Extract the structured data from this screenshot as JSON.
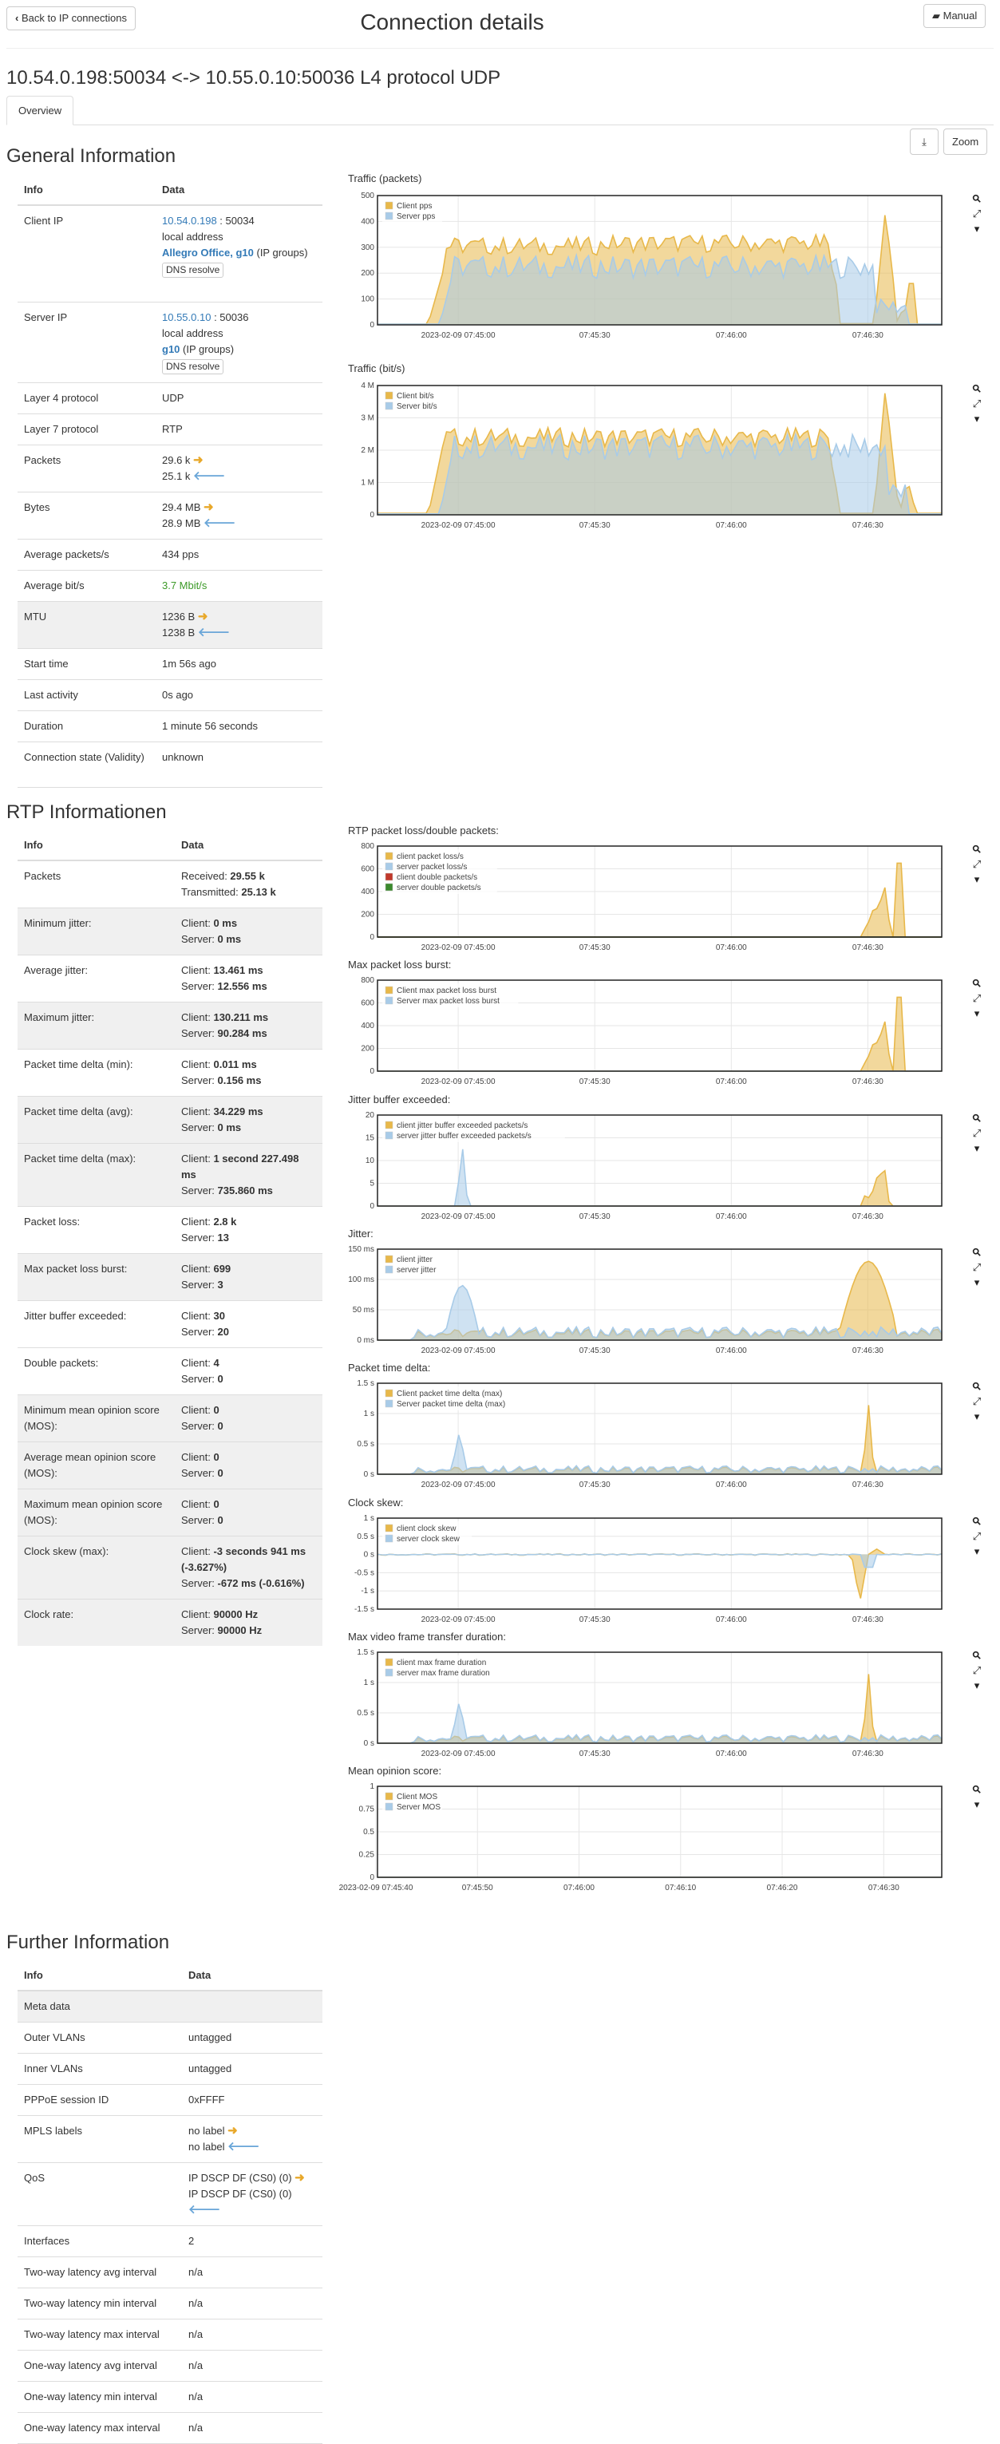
{
  "header": {
    "back_label": "Back to IP connections",
    "title": "Connection details",
    "manual_label": "Manual"
  },
  "connection": {
    "heading": "10.54.0.198:50034 <-> 10.55.0.10:50036 L4 protocol UDP"
  },
  "tabs": [
    {
      "label": "Overview",
      "active": true
    }
  ],
  "toolbar": {
    "zoom_label": "Zoom",
    "download_icon": "download-icon"
  },
  "general": {
    "title": "General Information",
    "col_info": "Info",
    "col_data": "Data",
    "client_ip": {
      "label": "Client IP",
      "ip": "10.54.0.198",
      "port": " : 50034",
      "local": "local address",
      "groups": "Allegro Office, g10",
      "groups_suffix": " (IP groups)",
      "dns": "DNS resolve"
    },
    "server_ip": {
      "label": "Server IP",
      "ip": "10.55.0.10",
      "port": " : 50036",
      "local": "local address",
      "groups": "g10",
      "groups_suffix": " (IP groups)",
      "dns": "DNS resolve"
    },
    "rows": {
      "l4": {
        "label": "Layer 4 protocol",
        "value": "UDP"
      },
      "l7": {
        "label": "Layer 7 protocol",
        "value": "RTP"
      },
      "packets": {
        "label": "Packets",
        "v1": "29.6 k",
        "v2": "25.1 k"
      },
      "bytes": {
        "label": "Bytes",
        "v1": "29.4 MB",
        "v2": "28.9 MB"
      },
      "avg_pps": {
        "label": "Average packets/s",
        "value": "434 pps"
      },
      "avg_bps": {
        "label": "Average bit/s",
        "value": "3.7 Mbit/s"
      },
      "mtu": {
        "label": "MTU",
        "v1": "1236 B",
        "v2": "1238 B"
      },
      "start": {
        "label": "Start time",
        "value": "1m 56s ago"
      },
      "last": {
        "label": "Last activity",
        "value": "0s ago"
      },
      "duration": {
        "label": "Duration",
        "value": "1 minute 56 seconds"
      },
      "state": {
        "label": "Connection state (Validity)",
        "value": "unknown"
      }
    }
  },
  "rtp": {
    "title": "RTP Informationen",
    "col_info": "Info",
    "col_data": "Data",
    "rows": [
      {
        "label": "Packets",
        "l1": "Received: ",
        "b1": "29.55 k",
        "l2": "Transmitted: ",
        "b2": "25.13 k",
        "shade": false
      },
      {
        "label": "Minimum jitter:",
        "l1": "Client: ",
        "b1": "0 ms",
        "l2": "Server: ",
        "b2": "0 ms",
        "shade": true
      },
      {
        "label": "Average jitter:",
        "l1": "Client: ",
        "b1": "13.461 ms",
        "l2": "Server: ",
        "b2": "12.556 ms",
        "shade": false
      },
      {
        "label": "Maximum jitter:",
        "l1": "Client: ",
        "b1": "130.211 ms",
        "l2": "Server: ",
        "b2": "90.284 ms",
        "shade": true
      },
      {
        "label": "Packet time delta (min):",
        "l1": "Client: ",
        "b1": "0.011 ms",
        "l2": "Server: ",
        "b2": "0.156 ms",
        "shade": false
      },
      {
        "label": "Packet time delta (avg):",
        "l1": "Client: ",
        "b1": "34.229 ms",
        "l2": "Server: ",
        "b2": "0 ms",
        "shade": true
      },
      {
        "label": "Packet time delta (max):",
        "l1": "Client: ",
        "b1": "1 second 227.498 ms",
        "l2": "Server: ",
        "b2": "735.860 ms",
        "shade": true
      },
      {
        "label": "Packet loss:",
        "l1": "Client: ",
        "b1": "2.8 k",
        "l2": "Server: ",
        "b2": "13",
        "shade": false
      },
      {
        "label": "Max packet loss burst:",
        "l1": "Client: ",
        "b1": "699",
        "l2": "Server: ",
        "b2": "3",
        "shade": true
      },
      {
        "label": "Jitter buffer exceeded:",
        "l1": "Client: ",
        "b1": "30",
        "l2": "Server: ",
        "b2": "20",
        "shade": false
      },
      {
        "label": "Double packets:",
        "l1": "Client: ",
        "b1": "4",
        "l2": "Server: ",
        "b2": "0",
        "shade": false
      },
      {
        "label": "Minimum mean opinion score (MOS):",
        "l1": "Client: ",
        "b1": "0",
        "l2": "Server: ",
        "b2": "0",
        "shade": true
      },
      {
        "label": "Average mean opinion score (MOS):",
        "l1": "Client: ",
        "b1": "0",
        "l2": "Server: ",
        "b2": "0",
        "shade": true
      },
      {
        "label": "Maximum mean opinion score (MOS):",
        "l1": "Client: ",
        "b1": "0",
        "l2": "Server: ",
        "b2": "0",
        "shade": true
      },
      {
        "label": "Clock skew (max):",
        "l1": "Client: ",
        "b1": "-3 seconds 941 ms (-3.627%)",
        "l2": "Server: ",
        "b2": "-672 ms (-0.616%)",
        "shade": true
      },
      {
        "label": "Clock rate:",
        "l1": "Client: ",
        "b1": "90000 Hz",
        "l2": "Server: ",
        "b2": "90000 Hz",
        "shade": true
      }
    ]
  },
  "further": {
    "title": "Further Information",
    "col_info": "Info",
    "col_data": "Data",
    "meta": "Meta data",
    "rows": [
      {
        "label": "Outer VLANs",
        "value": "untagged"
      },
      {
        "label": "Inner VLANs",
        "value": "untagged"
      },
      {
        "label": "PPPoE session ID",
        "value": "0xFFFF"
      },
      {
        "label": "MPLS labels",
        "v1": "no label",
        "v2": "no label"
      },
      {
        "label": "QoS",
        "v1": "IP DSCP DF (CS0) (0)",
        "v2": "IP DSCP DF (CS0) (0)"
      },
      {
        "label": "Interfaces",
        "value": "2"
      },
      {
        "label": "Two-way latency avg interval",
        "value": "n/a"
      },
      {
        "label": "Two-way latency min interval",
        "value": "n/a"
      },
      {
        "label": "Two-way latency max interval",
        "value": "n/a"
      },
      {
        "label": "One-way latency avg interval",
        "value": "n/a"
      },
      {
        "label": "One-way latency min interval",
        "value": "n/a"
      },
      {
        "label": "One-way latency max interval",
        "value": "n/a"
      }
    ]
  },
  "colors": {
    "client": "#e8b84a",
    "server": "#a8cbe8",
    "red": "#c0392b",
    "green": "#3c8a2e",
    "link": "#337ab7"
  },
  "chart_data": [
    {
      "id": "traffic_pps",
      "title": "Traffic (packets)",
      "type": "area",
      "yticks": [
        "500",
        "400",
        "300",
        "200",
        "100",
        "0"
      ],
      "ymax": 500,
      "xticks": [
        "2023-02-09 07:45:00",
        "07:45:30",
        "07:46:00",
        "07:46:30"
      ],
      "x_start": "2023-02-09 07:44:40",
      "x_end": "2023-02-09 07:46:45",
      "x_tick_times": [
        "07:45:00",
        "07:45:30",
        "07:46:00",
        "07:46:30"
      ],
      "series": [
        {
          "name": "Client pps",
          "profile": "client_pps"
        },
        {
          "name": "Server pps",
          "profile": "server_pps"
        }
      ]
    },
    {
      "id": "traffic_bits",
      "title": "Traffic (bit/s)",
      "type": "area",
      "yticks": [
        "4 M",
        "3 M",
        "2 M",
        "1 M",
        "0"
      ],
      "ymax": 4000000,
      "xticks": [
        "2023-02-09 07:45:00",
        "07:45:30",
        "07:46:00",
        "07:46:30"
      ],
      "series": [
        {
          "name": "Client bit/s",
          "profile": "client_bits"
        },
        {
          "name": "Server bit/s",
          "profile": "server_bits"
        }
      ]
    },
    {
      "id": "rtp_loss",
      "title": "RTP packet loss/double packets:",
      "type": "area",
      "yticks": [
        "800",
        "600",
        "400",
        "200",
        "0"
      ],
      "ymax": 800,
      "xticks": [
        "2023-02-09 07:45:00",
        "07:45:30",
        "07:46:00",
        "07:46:30"
      ],
      "series": [
        {
          "name": "client packet loss/s",
          "profile": "loss"
        },
        {
          "name": "server packet loss/s",
          "profile": "zero"
        },
        {
          "name": "client double packets/s",
          "profile": "zero"
        },
        {
          "name": "server double packets/s",
          "profile": "zero"
        }
      ]
    },
    {
      "id": "loss_burst",
      "title": "Max packet loss burst:",
      "type": "area",
      "yticks": [
        "800",
        "600",
        "400",
        "200",
        "0"
      ],
      "ymax": 800,
      "xticks": [
        "2023-02-09 07:45:00",
        "07:45:30",
        "07:46:00",
        "07:46:30"
      ],
      "series": [
        {
          "name": "Client max packet loss burst",
          "profile": "loss"
        },
        {
          "name": "Server max packet loss burst",
          "profile": "zero"
        }
      ]
    },
    {
      "id": "jitter_buffer",
      "title": "Jitter buffer exceeded:",
      "type": "area",
      "yticks": [
        "20",
        "15",
        "10",
        "5",
        "0"
      ],
      "ymax": 20,
      "xticks": [
        "2023-02-09 07:45:00",
        "07:45:30",
        "07:46:00",
        "07:46:30"
      ],
      "series": [
        {
          "name": "client jitter buffer exceeded packets/s",
          "profile": "jb_client"
        },
        {
          "name": "server jitter buffer exceeded packets/s",
          "profile": "jb_server"
        }
      ]
    },
    {
      "id": "jitter",
      "title": "Jitter:",
      "type": "area",
      "yticks": [
        "150 ms",
        "100 ms",
        "50 ms",
        "0 ms"
      ],
      "ymax": 150,
      "xticks": [
        "2023-02-09 07:45:00",
        "07:45:30",
        "07:46:00",
        "07:46:30"
      ],
      "series": [
        {
          "name": "client jitter",
          "profile": "jit_client"
        },
        {
          "name": "server jitter",
          "profile": "jit_server"
        }
      ]
    },
    {
      "id": "ptd",
      "title": "Packet time delta:",
      "type": "area",
      "yticks": [
        "1.5 s",
        "1 s",
        "0.5 s",
        "0 s"
      ],
      "ymax": 1.5,
      "xticks": [
        "2023-02-09 07:45:00",
        "07:45:30",
        "07:46:00",
        "07:46:30"
      ],
      "series": [
        {
          "name": "Client packet time delta (max)",
          "profile": "ptd_client"
        },
        {
          "name": "Server packet time delta (max)",
          "profile": "ptd_server"
        }
      ]
    },
    {
      "id": "skew",
      "title": "Clock skew:",
      "type": "area",
      "yticks": [
        "1 s",
        "0.5 s",
        "0 s",
        "-0.5 s",
        "-1 s",
        "-1.5 s"
      ],
      "ymax": 1,
      "ymin": -1.5,
      "xticks": [
        "2023-02-09 07:45:00",
        "07:45:30",
        "07:46:00",
        "07:46:30"
      ],
      "series": [
        {
          "name": "client clock skew",
          "profile": "skew_client"
        },
        {
          "name": "server clock skew",
          "profile": "skew_server"
        }
      ]
    },
    {
      "id": "vframe",
      "title": "Max video frame transfer duration:",
      "type": "area",
      "yticks": [
        "1.5 s",
        "1 s",
        "0.5 s",
        "0 s"
      ],
      "ymax": 1.5,
      "xticks": [
        "2023-02-09 07:45:00",
        "07:45:30",
        "07:46:00",
        "07:46:30"
      ],
      "series": [
        {
          "name": "client max frame duration",
          "profile": "ptd_client"
        },
        {
          "name": "server max frame duration",
          "profile": "ptd_server"
        }
      ]
    },
    {
      "id": "mos",
      "title": "Mean opinion score:",
      "type": "area",
      "yticks": [
        "1",
        "0.75",
        "0.5",
        "0.25",
        "0"
      ],
      "ymax": 1,
      "xticks": [
        "2023-02-09 07:45:40",
        "07:45:50",
        "07:46:00",
        "07:46:10",
        "07:46:20",
        "07:46:30"
      ],
      "series": [
        {
          "name": "Client MOS",
          "profile": "zero"
        },
        {
          "name": "Server MOS",
          "profile": "zero"
        }
      ]
    }
  ]
}
